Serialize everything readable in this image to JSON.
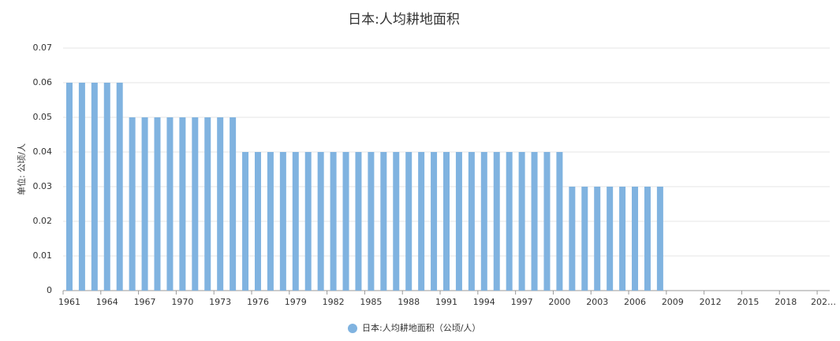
{
  "chart_data": {
    "type": "bar",
    "title": "日本:人均耕地面积",
    "y_label": "单位: 公顷/人",
    "categories": [
      "1961",
      null,
      null,
      "1964",
      null,
      null,
      "1967",
      null,
      null,
      "1970",
      null,
      null,
      "1973",
      null,
      null,
      "1976",
      null,
      null,
      "1979",
      null,
      null,
      "1982",
      null,
      null,
      "1985",
      null,
      null,
      "1988",
      null,
      null,
      "1991",
      null,
      null,
      "1994",
      null,
      null,
      "1997",
      null,
      null,
      "2000",
      null,
      null,
      "2003",
      null,
      null,
      "2006",
      null,
      null,
      "2009",
      null,
      null,
      "2012",
      null,
      null,
      "2015",
      null,
      null,
      "2018",
      null,
      null,
      "202…"
    ],
    "series": [
      {
        "name": "日本:人均耕地面积（公顷/人）",
        "color": "#80b3e0",
        "values": [
          0.06,
          0.06,
          0.06,
          0.06,
          0.06,
          0.05,
          0.05,
          0.05,
          0.05,
          0.05,
          0.05,
          0.05,
          0.05,
          0.05,
          0.04,
          0.04,
          0.04,
          0.04,
          0.04,
          0.04,
          0.04,
          0.04,
          0.04,
          0.04,
          0.04,
          0.04,
          0.04,
          0.04,
          0.04,
          0.04,
          0.04,
          0.04,
          0.04,
          0.04,
          0.04,
          0.04,
          0.04,
          0.04,
          0.04,
          0.04,
          0.03,
          0.03,
          0.03,
          0.03,
          0.03,
          0.03,
          0.03,
          0.03,
          null,
          null,
          null,
          null,
          null,
          null,
          null,
          null,
          null,
          null,
          null,
          null,
          null
        ]
      }
    ],
    "ylim": [
      0,
      0.07
    ],
    "yticks": [
      0,
      0.01,
      0.02,
      0.03,
      0.04,
      0.05,
      0.06,
      0.07
    ],
    "grid": true,
    "legend": "bottom"
  }
}
